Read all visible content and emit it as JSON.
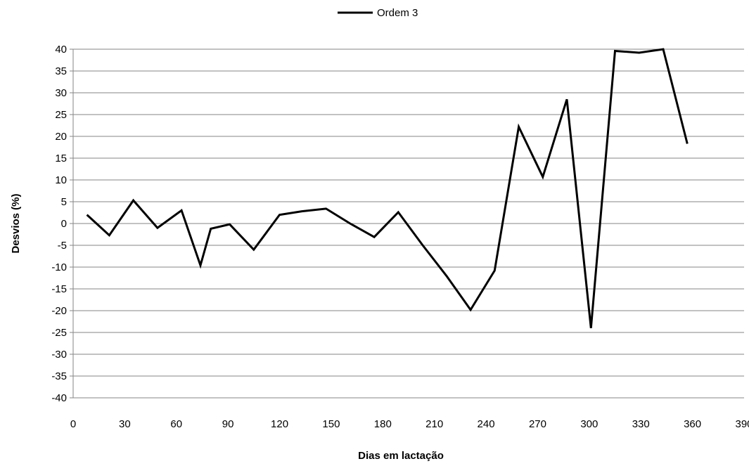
{
  "chart_data": {
    "type": "line",
    "xlabel": "Dias em lactação",
    "ylabel": "Desvios (%)",
    "xlim": [
      0,
      390
    ],
    "ylim": [
      -40,
      40
    ],
    "x_ticks": [
      0,
      30,
      60,
      90,
      120,
      150,
      180,
      210,
      240,
      270,
      300,
      330,
      360,
      390
    ],
    "y_ticks": [
      40,
      35,
      30,
      25,
      20,
      15,
      10,
      5,
      0,
      -5,
      -10,
      -15,
      -20,
      -25,
      -30,
      -35,
      -40
    ],
    "grid": "horizontal",
    "legend_position": "top-center",
    "series": [
      {
        "name": "Ordem 3",
        "color": "#000000",
        "points": [
          [
            8,
            2
          ],
          [
            21,
            -2.7
          ],
          [
            35,
            5.3
          ],
          [
            49,
            -1
          ],
          [
            63,
            3
          ],
          [
            74,
            -9.6
          ],
          [
            80,
            -1.2
          ],
          [
            91,
            -0.2
          ],
          [
            105,
            -6
          ],
          [
            120,
            2
          ],
          [
            133,
            2.8
          ],
          [
            147,
            3.4
          ],
          [
            161,
            0
          ],
          [
            175,
            -3.1
          ],
          [
            189,
            2.6
          ],
          [
            203,
            -4.9
          ],
          [
            217,
            -12
          ],
          [
            231,
            -19.8
          ],
          [
            245,
            -10.8
          ],
          [
            259,
            22.2
          ],
          [
            273,
            10.7
          ],
          [
            287,
            28.5
          ],
          [
            301,
            -24
          ],
          [
            315,
            39.6
          ],
          [
            329,
            39.2
          ],
          [
            343,
            40
          ],
          [
            357,
            18.3
          ]
        ]
      }
    ]
  }
}
